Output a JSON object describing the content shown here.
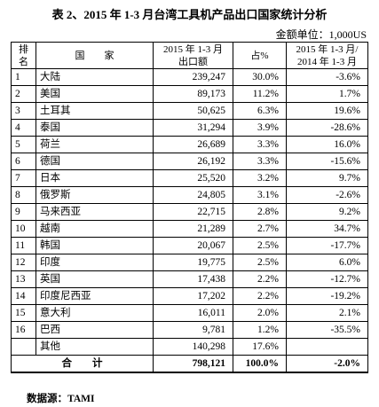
{
  "header": {
    "title": "表 2、2015 年 1-3 月台湾工具机产品出口国家统计分析",
    "unit": "金额单位：1,000US"
  },
  "table": {
    "columns": [
      [
        "排",
        "名"
      ],
      [
        "国　　家"
      ],
      [
        "2015 年 1-3 月",
        "出口额"
      ],
      [
        "占%"
      ],
      [
        "2015 年 1-3 月/",
        "2014 年 1-3 月"
      ]
    ],
    "rows": [
      [
        "1",
        "大陆",
        "239,247",
        "30.0%",
        "-3.6%"
      ],
      [
        "2",
        "美国",
        "89,173",
        "11.2%",
        "1.7%"
      ],
      [
        "3",
        "土耳其",
        "50,625",
        "6.3%",
        "19.6%"
      ],
      [
        "4",
        "泰国",
        "31,294",
        "3.9%",
        "-28.6%"
      ],
      [
        "5",
        "荷兰",
        "26,689",
        "3.3%",
        "16.0%"
      ],
      [
        "6",
        "德国",
        "26,192",
        "3.3%",
        "-15.6%"
      ],
      [
        "7",
        "日本",
        "25,520",
        "3.2%",
        "9.7%"
      ],
      [
        "8",
        "俄罗斯",
        "24,805",
        "3.1%",
        "-2.6%"
      ],
      [
        "9",
        "马来西亚",
        "22,715",
        "2.8%",
        "9.2%"
      ],
      [
        "10",
        "越南",
        "21,289",
        "2.7%",
        "34.7%"
      ],
      [
        "11",
        "韩国",
        "20,067",
        "2.5%",
        "-17.7%"
      ],
      [
        "12",
        "印度",
        "19,775",
        "2.5%",
        "6.0%"
      ],
      [
        "13",
        "英国",
        "17,438",
        "2.2%",
        "-12.7%"
      ],
      [
        "14",
        "印度尼西亚",
        "17,202",
        "2.2%",
        "-19.2%"
      ],
      [
        "15",
        "意大利",
        "16,011",
        "2.0%",
        "2.1%"
      ],
      [
        "16",
        "巴西",
        "9,781",
        "1.2%",
        "-35.5%"
      ],
      [
        null,
        "其他",
        "140,298",
        "17.6%",
        null
      ]
    ],
    "total": [
      "合　　计",
      "798,121",
      "100.0%",
      "-2.0%"
    ]
  },
  "footer": {
    "source": "数据源：TAMI"
  }
}
